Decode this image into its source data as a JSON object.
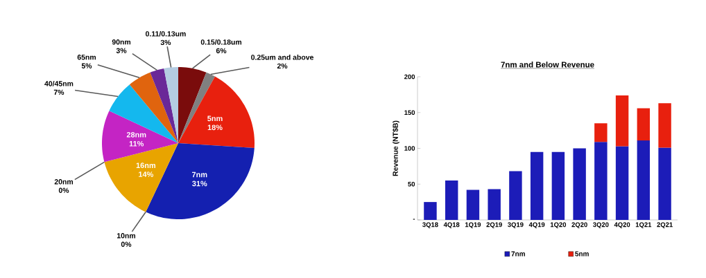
{
  "chart_data": [
    {
      "type": "pie",
      "categories": [
        "0.15/0.18um",
        "0.25um and above",
        "5nm",
        "7nm",
        "10nm",
        "16nm",
        "20nm",
        "28nm",
        "40/45nm",
        "65nm",
        "90nm",
        "0.11/0.13um"
      ],
      "values": [
        6,
        2,
        18,
        31,
        0,
        14,
        0,
        11,
        7,
        5,
        3,
        3
      ],
      "value_labels": [
        "6%",
        "2%",
        "18%",
        "31%",
        "0%",
        "14%",
        "0%",
        "11%",
        "7%",
        "5%",
        "3%",
        "3%"
      ],
      "colors": [
        "#7a0c0c",
        "#808080",
        "#e8200e",
        "#1420b0",
        null,
        "#e8a400",
        null,
        "#c424c4",
        "#14b8ee",
        "#e0640e",
        "#6a2898",
        "#b4cce2"
      ]
    },
    {
      "type": "bar",
      "title": "7nm and Below Revenue",
      "ylabel": "Revenue (NT$B)",
      "categories": [
        "3Q18",
        "4Q18",
        "1Q19",
        "2Q19",
        "3Q19",
        "4Q19",
        "1Q20",
        "2Q20",
        "3Q20",
        "4Q20",
        "1Q21",
        "2Q21"
      ],
      "series": [
        {
          "name": "7nm",
          "color": "#1c1cb8",
          "values": [
            25,
            55,
            42,
            43,
            68,
            95,
            95,
            100,
            109,
            103,
            111,
            101
          ]
        },
        {
          "name": "5nm",
          "color": "#e8200e",
          "values": [
            null,
            null,
            null,
            null,
            null,
            null,
            null,
            null,
            26,
            71,
            45,
            62
          ]
        }
      ],
      "stacked": true,
      "ylim": [
        0,
        200
      ],
      "yticks": [
        {
          "value": 0,
          "label": "-"
        },
        50,
        100,
        150,
        200
      ],
      "legend": "bottom"
    }
  ]
}
